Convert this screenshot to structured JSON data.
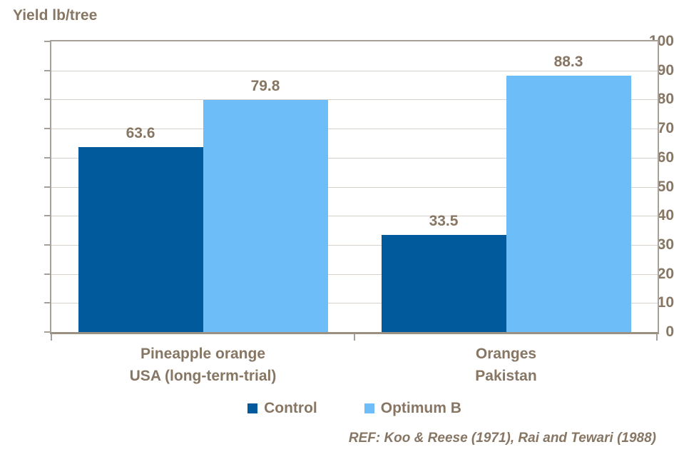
{
  "chart_data": {
    "type": "bar",
    "title": "Yield lb/tree",
    "ylabel": "Yield lb/tree",
    "categories": [
      {
        "lines": [
          "Pineapple orange",
          "USA (long-term-trial)"
        ]
      },
      {
        "lines": [
          "Oranges",
          "Pakistan"
        ]
      }
    ],
    "series": [
      {
        "name": "Control",
        "color": "#005A9B",
        "values": [
          63.6,
          33.5
        ]
      },
      {
        "name": "Optimum B",
        "color": "#6CBDF8",
        "values": [
          79.8,
          88.3
        ]
      }
    ],
    "ylim": [
      0,
      100
    ],
    "ytick_step": 10,
    "ytick_labels": [
      "0",
      "10",
      "20",
      "30",
      "40",
      "50",
      "60",
      "70",
      "80",
      "90",
      "100"
    ],
    "grid": true,
    "value_labels": true,
    "legend_position": "bottom",
    "reference": "REF: Koo & Reese (1971), Rai and Tewari (1988)",
    "colors": {
      "text": "#877663",
      "gridline": "#D6D1CA",
      "axis": "#A6A099"
    }
  }
}
